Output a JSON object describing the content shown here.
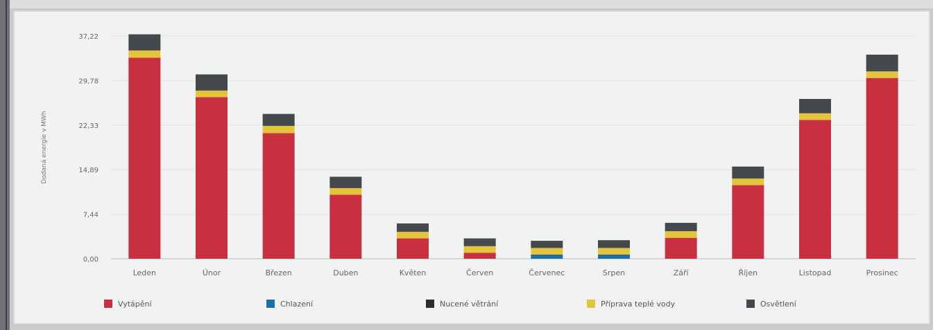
{
  "chart_data": {
    "type": "bar",
    "stacked": true,
    "ylabel": "Dodaná energie v MWh",
    "yticks": [
      "0,00",
      "7,44",
      "14,89",
      "22,33",
      "29,78",
      "37,22"
    ],
    "ylim": [
      0,
      37.22
    ],
    "categories": [
      "Leden",
      "Únor",
      "Březen",
      "Duben",
      "Květen",
      "Červen",
      "Červenec",
      "Srpen",
      "Září",
      "Říjen",
      "Listopad",
      "Prosinec"
    ],
    "series": [
      {
        "name": "Vytápění",
        "color": "#c8303f",
        "values": [
          33.6,
          27.0,
          21.0,
          10.7,
          3.4,
          1.0,
          0.0,
          0.0,
          3.5,
          12.3,
          23.2,
          30.2
        ]
      },
      {
        "name": "Chlazení",
        "color": "#1d6fa8",
        "values": [
          0.0,
          0.0,
          0.0,
          0.0,
          0.0,
          0.0,
          0.7,
          0.7,
          0.0,
          0.0,
          0.0,
          0.0
        ]
      },
      {
        "name": "Nucené větrání",
        "color": "#2b2d30",
        "values": [
          0.0,
          0.0,
          0.0,
          0.0,
          0.0,
          0.0,
          0.0,
          0.0,
          0.0,
          0.0,
          0.0,
          0.0
        ]
      },
      {
        "name": "Příprava teplé vody",
        "color": "#e3c43a",
        "values": [
          1.2,
          1.1,
          1.2,
          1.1,
          1.1,
          1.1,
          1.1,
          1.1,
          1.1,
          1.1,
          1.1,
          1.1
        ]
      },
      {
        "name": "Osvětlení",
        "color": "#45494d",
        "values": [
          2.7,
          2.7,
          2.0,
          1.9,
          1.4,
          1.3,
          1.2,
          1.3,
          1.4,
          2.0,
          2.4,
          2.8
        ]
      }
    ],
    "legend": "bottom"
  }
}
